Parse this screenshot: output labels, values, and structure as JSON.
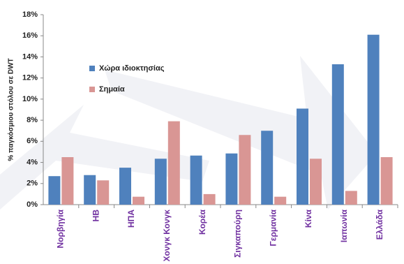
{
  "chart_data": {
    "type": "bar",
    "y_label": "% παγκόσμιου στόλου σε DWT",
    "categories": [
      "Νορβηγία",
      "ΗΒ",
      "ΗΠΑ",
      "Χονγκ Κονγκ",
      "Κορέα",
      "Σιγκαπούρη",
      "Γερμανία",
      "Κίνα",
      "Ιαπωνία",
      "Ελλάδα"
    ],
    "series": [
      {
        "name": "Χώρα ιδιοκτησίας",
        "color": "#4f81bd",
        "values": [
          2.7,
          2.8,
          3.5,
          4.35,
          4.65,
          4.85,
          7.0,
          9.1,
          13.3,
          16.1
        ]
      },
      {
        "name": "Σημαία",
        "color": "#d99694",
        "values": [
          4.5,
          2.3,
          0.75,
          7.9,
          1.0,
          6.6,
          0.75,
          4.35,
          1.3,
          4.5
        ]
      }
    ],
    "ylim": [
      0,
      18
    ],
    "yticks": [
      {
        "value": 0,
        "label": "0%"
      },
      {
        "value": 2,
        "label": "2%"
      },
      {
        "value": 4,
        "label": "4%"
      },
      {
        "value": 6,
        "label": "6%"
      },
      {
        "value": 8,
        "label": "8%"
      },
      {
        "value": 10,
        "label": "10%"
      },
      {
        "value": 12,
        "label": "12%"
      },
      {
        "value": 14,
        "label": "14%"
      },
      {
        "value": 16,
        "label": "16%"
      },
      {
        "value": 18,
        "label": "18%"
      }
    ],
    "legend": "upper-left"
  }
}
